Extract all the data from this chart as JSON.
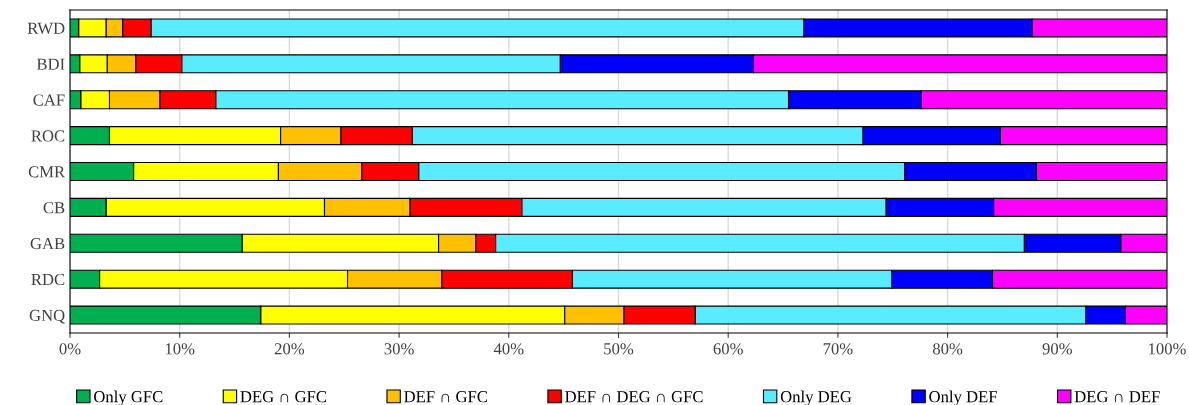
{
  "chart_data": {
    "type": "bar",
    "orientation": "horizontal",
    "stacked": true,
    "categories": [
      "RWD",
      "BDI",
      "CAF",
      "ROC",
      "CMR",
      "CB",
      "GAB",
      "RDC",
      "GNQ"
    ],
    "series": [
      {
        "name": "Only GFC",
        "color": "#00b050",
        "values": [
          0.8,
          0.9,
          1.0,
          3.6,
          5.8,
          3.3,
          15.7,
          2.7,
          17.4
        ]
      },
      {
        "name": "DEG ∩ GFC",
        "color": "#ffff00",
        "values": [
          2.5,
          2.5,
          2.6,
          15.6,
          13.2,
          19.9,
          17.9,
          22.6,
          27.7
        ]
      },
      {
        "name": "DEF ∩ GFC",
        "color": "#ffc000",
        "values": [
          1.5,
          2.6,
          4.6,
          5.5,
          7.6,
          7.8,
          3.4,
          8.6,
          5.4
        ]
      },
      {
        "name": "DEF ∩ DEG ∩ GFC",
        "color": "#ff0000",
        "values": [
          2.6,
          4.2,
          5.1,
          6.5,
          5.2,
          10.2,
          1.8,
          11.9,
          6.5
        ]
      },
      {
        "name": "Only DEG",
        "color": "#59ebff",
        "values": [
          59.5,
          34.5,
          52.2,
          41.1,
          44.3,
          33.2,
          48.2,
          29.1,
          35.6
        ]
      },
      {
        "name": "Only DEF",
        "color": "#0000ff",
        "values": [
          20.8,
          17.6,
          12.1,
          12.5,
          12.0,
          9.8,
          8.8,
          9.2,
          3.6
        ]
      },
      {
        "name": "DEG ∩ DEF",
        "color": "#ff00ff",
        "values": [
          12.3,
          37.7,
          22.4,
          15.2,
          11.9,
          15.8,
          4.2,
          15.9,
          3.8
        ]
      }
    ],
    "xlim": [
      0,
      100
    ],
    "xticks": [
      {
        "value": 0,
        "label": "0%"
      },
      {
        "value": 10,
        "label": "10%"
      },
      {
        "value": 20,
        "label": "20%"
      },
      {
        "value": 30,
        "label": "30%"
      },
      {
        "value": 40,
        "label": "40%"
      },
      {
        "value": 50,
        "label": "50%"
      },
      {
        "value": 60,
        "label": "60%"
      },
      {
        "value": 70,
        "label": "70%"
      },
      {
        "value": 80,
        "label": "80%"
      },
      {
        "value": 90,
        "label": "90%"
      },
      {
        "value": 100,
        "label": "100%"
      }
    ],
    "grid": "x",
    "legend": "bottom"
  }
}
